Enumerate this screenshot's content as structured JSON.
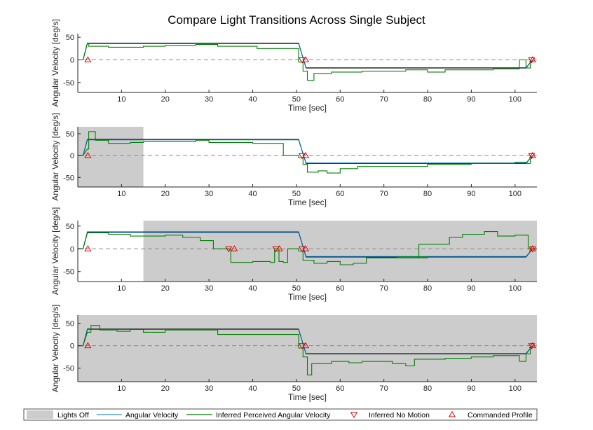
{
  "chart_data": {
    "type": "line",
    "title": "Compare Light Transitions Across Single Subject",
    "legend": {
      "placement": "bottom",
      "entries": [
        {
          "label": "Lights Off",
          "color": "#cccccc",
          "marker": "patch"
        },
        {
          "label": "Angular Velocity",
          "color": "#0072bd",
          "marker": "line"
        },
        {
          "label": "Inferred Perceived Angular Velocity",
          "color": "#008000",
          "marker": "line"
        },
        {
          "label": "Inferred No Motion",
          "color": "#e00000",
          "marker": "triangle-down"
        },
        {
          "label": "Commanded Profile",
          "color": "#e00000",
          "marker": "triangle-up"
        }
      ]
    },
    "panels": [
      {
        "xlabel": "Time [sec]",
        "ylabel": "Angular Velocity [deg/s]",
        "xlim": [
          0,
          105
        ],
        "ylim": [
          -72,
          58
        ],
        "xticks": [
          10,
          20,
          30,
          40,
          50,
          60,
          70,
          80,
          90,
          100
        ],
        "yticks": [
          -50,
          0,
          50
        ],
        "lights_off": [],
        "commanded": [
          [
            0,
            0
          ],
          [
            1.2,
            0
          ],
          [
            2.2,
            37
          ],
          [
            50.5,
            37
          ],
          [
            52.2,
            -18
          ],
          [
            102.5,
            -18
          ],
          [
            104,
            0
          ]
        ],
        "angular_velocity": [
          [
            0,
            0
          ],
          [
            1.2,
            0
          ],
          [
            2.2,
            36
          ],
          [
            50.5,
            36
          ],
          [
            52.2,
            -17
          ],
          [
            102.5,
            -17
          ],
          [
            104,
            0
          ]
        ],
        "perceived": [
          [
            0,
            0
          ],
          [
            1.2,
            0
          ],
          [
            2.2,
            37
          ],
          [
            2.5,
            37
          ],
          [
            2.5,
            30
          ],
          [
            7,
            30
          ],
          [
            7,
            28
          ],
          [
            15,
            28
          ],
          [
            15,
            30
          ],
          [
            20,
            30
          ],
          [
            20,
            32
          ],
          [
            27,
            32
          ],
          [
            27,
            34
          ],
          [
            32,
            34
          ],
          [
            32,
            30
          ],
          [
            41,
            30
          ],
          [
            41,
            25
          ],
          [
            50.5,
            25
          ],
          [
            50.5,
            -5
          ],
          [
            51.5,
            -5
          ],
          [
            51.5,
            -25
          ],
          [
            52.5,
            -25
          ],
          [
            52.5,
            -45
          ],
          [
            54,
            -45
          ],
          [
            54,
            -30
          ],
          [
            58,
            -30
          ],
          [
            58,
            -27
          ],
          [
            65,
            -27
          ],
          [
            65,
            -25
          ],
          [
            75,
            -25
          ],
          [
            75,
            -22
          ],
          [
            80,
            -22
          ],
          [
            80,
            -27
          ],
          [
            84,
            -27
          ],
          [
            84,
            -22
          ],
          [
            95,
            -22
          ],
          [
            95,
            -20
          ],
          [
            101,
            -20
          ],
          [
            101,
            0
          ],
          [
            102.5,
            0
          ],
          [
            102.5,
            -18
          ],
          [
            103.5,
            -18
          ],
          [
            103.5,
            0
          ]
        ],
        "no_motion_markers": [
          [
            51.3,
            0
          ],
          [
            103.8,
            0
          ]
        ],
        "commanded_markers": [
          [
            2.3,
            0
          ],
          [
            52.1,
            0
          ],
          [
            104,
            0
          ]
        ]
      },
      {
        "xlabel": "Time [sec]",
        "ylabel": "Angular Velocity [deg/s]",
        "xlim": [
          0,
          105
        ],
        "ylim": [
          -72,
          66
        ],
        "xticks": [
          10,
          20,
          30,
          40,
          50,
          60,
          70,
          80,
          90,
          100
        ],
        "yticks": [
          -50,
          0,
          50
        ],
        "lights_off": [
          [
            0,
            15
          ]
        ],
        "commanded": [
          [
            0,
            0
          ],
          [
            1.2,
            0
          ],
          [
            2.2,
            37
          ],
          [
            50.5,
            37
          ],
          [
            52.2,
            -18
          ],
          [
            102.5,
            -18
          ],
          [
            104,
            0
          ]
        ],
        "angular_velocity": [
          [
            0,
            0
          ],
          [
            1.2,
            0
          ],
          [
            2.2,
            36
          ],
          [
            50.5,
            36
          ],
          [
            52.2,
            -17
          ],
          [
            102.5,
            -17
          ],
          [
            104,
            0
          ]
        ],
        "perceived": [
          [
            0,
            0
          ],
          [
            1.2,
            0
          ],
          [
            2.2,
            15
          ],
          [
            2.5,
            15
          ],
          [
            2.5,
            55
          ],
          [
            4,
            55
          ],
          [
            4,
            35
          ],
          [
            7,
            35
          ],
          [
            7,
            28
          ],
          [
            12,
            28
          ],
          [
            12,
            30
          ],
          [
            15,
            30
          ],
          [
            15,
            32
          ],
          [
            27,
            32
          ],
          [
            27,
            35
          ],
          [
            30,
            35
          ],
          [
            30,
            30
          ],
          [
            40,
            30
          ],
          [
            40,
            28
          ],
          [
            47,
            28
          ],
          [
            47,
            0
          ],
          [
            50.5,
            0
          ],
          [
            50.5,
            -5
          ],
          [
            51.5,
            -5
          ],
          [
            51.5,
            -20
          ],
          [
            52.5,
            -20
          ],
          [
            52.5,
            -38
          ],
          [
            55,
            -38
          ],
          [
            55,
            -35
          ],
          [
            57,
            -35
          ],
          [
            57,
            -40
          ],
          [
            60,
            -40
          ],
          [
            60,
            -30
          ],
          [
            64,
            -30
          ],
          [
            64,
            -25
          ],
          [
            80,
            -25
          ],
          [
            80,
            -20
          ],
          [
            90,
            -20
          ],
          [
            90,
            -18
          ],
          [
            100,
            -18
          ],
          [
            100,
            -15
          ],
          [
            102.5,
            -15
          ],
          [
            102.5,
            -18
          ],
          [
            103.5,
            -18
          ],
          [
            103.5,
            0
          ]
        ],
        "no_motion_markers": [
          [
            51.3,
            0
          ],
          [
            103.8,
            0
          ]
        ],
        "commanded_markers": [
          [
            2.3,
            0
          ],
          [
            52.1,
            0
          ],
          [
            104,
            0
          ]
        ]
      },
      {
        "xlabel": "Time [sec]",
        "ylabel": "Angular Velocity [deg/s]",
        "xlim": [
          0,
          105
        ],
        "ylim": [
          -72,
          62
        ],
        "xticks": [
          10,
          20,
          30,
          40,
          50,
          60,
          70,
          80,
          90,
          100
        ],
        "yticks": [
          -50,
          0,
          50
        ],
        "lights_off": [
          [
            15,
            105
          ]
        ],
        "commanded": [
          [
            0,
            0
          ],
          [
            1.2,
            0
          ],
          [
            2.2,
            37
          ],
          [
            50.5,
            37
          ],
          [
            52.2,
            -18
          ],
          [
            102.5,
            -18
          ],
          [
            104,
            0
          ]
        ],
        "angular_velocity": [
          [
            0,
            0
          ],
          [
            1.2,
            0
          ],
          [
            2.2,
            36
          ],
          [
            50.5,
            36
          ],
          [
            52.2,
            -17
          ],
          [
            102.5,
            -17
          ],
          [
            104,
            0
          ]
        ],
        "perceived": [
          [
            0,
            0
          ],
          [
            1.2,
            0
          ],
          [
            2.2,
            35
          ],
          [
            7,
            35
          ],
          [
            7,
            32
          ],
          [
            12,
            32
          ],
          [
            12,
            28
          ],
          [
            20,
            28
          ],
          [
            20,
            30
          ],
          [
            24,
            30
          ],
          [
            24,
            25
          ],
          [
            28,
            25
          ],
          [
            28,
            18
          ],
          [
            31,
            18
          ],
          [
            31,
            0
          ],
          [
            35,
            0
          ],
          [
            35,
            -30
          ],
          [
            40,
            -30
          ],
          [
            40,
            -28
          ],
          [
            44,
            -28
          ],
          [
            44,
            -30
          ],
          [
            45,
            -30
          ],
          [
            45,
            0
          ],
          [
            46,
            0
          ],
          [
            46,
            -28
          ],
          [
            47,
            -28
          ],
          [
            47,
            -30
          ],
          [
            48,
            -30
          ],
          [
            48,
            0
          ],
          [
            50.5,
            0
          ],
          [
            50.5,
            -5
          ],
          [
            51.5,
            -5
          ],
          [
            51.5,
            -25
          ],
          [
            54,
            -25
          ],
          [
            54,
            -32
          ],
          [
            57,
            -32
          ],
          [
            57,
            -28
          ],
          [
            60,
            -28
          ],
          [
            60,
            -35
          ],
          [
            63,
            -35
          ],
          [
            63,
            -32
          ],
          [
            66,
            -32
          ],
          [
            66,
            -20
          ],
          [
            80,
            -20
          ],
          [
            80,
            -18
          ],
          [
            73,
            -18
          ],
          [
            73,
            -20
          ],
          [
            78,
            -20
          ],
          [
            78,
            10
          ],
          [
            85,
            10
          ],
          [
            85,
            25
          ],
          [
            88,
            25
          ],
          [
            88,
            32
          ],
          [
            93,
            32
          ],
          [
            93,
            38
          ],
          [
            96,
            38
          ],
          [
            96,
            28
          ],
          [
            100,
            28
          ],
          [
            100,
            30
          ],
          [
            103,
            30
          ],
          [
            103,
            0
          ],
          [
            105,
            0
          ]
        ],
        "no_motion_markers": [
          [
            34.5,
            0
          ],
          [
            45.3,
            0
          ],
          [
            51.3,
            0
          ],
          [
            104,
            0
          ]
        ],
        "commanded_markers": [
          [
            2.3,
            0
          ],
          [
            35.8,
            0
          ],
          [
            46.1,
            0
          ],
          [
            52.1,
            0
          ],
          [
            104,
            0
          ]
        ]
      },
      {
        "xlabel": "Time [sec]",
        "ylabel": "Angular Velocity [deg/s]",
        "xlim": [
          0,
          105
        ],
        "ylim": [
          -80,
          68
        ],
        "xticks": [
          10,
          20,
          30,
          40,
          50,
          60,
          70,
          80,
          90,
          100
        ],
        "yticks": [
          -50,
          0,
          50
        ],
        "lights_off": [
          [
            0,
            105
          ]
        ],
        "commanded": [
          [
            0,
            0
          ],
          [
            1.2,
            0
          ],
          [
            2.2,
            37
          ],
          [
            50.5,
            37
          ],
          [
            52.2,
            -18
          ],
          [
            102.5,
            -18
          ],
          [
            104,
            0
          ]
        ],
        "angular_velocity": [
          [
            0,
            0
          ],
          [
            1.2,
            0
          ],
          [
            2.2,
            36
          ],
          [
            50.5,
            36
          ],
          [
            52.2,
            -17
          ],
          [
            102.5,
            -17
          ],
          [
            104,
            0
          ]
        ],
        "perceived": [
          [
            0,
            0
          ],
          [
            1.2,
            0
          ],
          [
            2.2,
            30
          ],
          [
            3,
            30
          ],
          [
            3,
            45
          ],
          [
            5,
            45
          ],
          [
            5,
            35
          ],
          [
            9,
            35
          ],
          [
            9,
            32
          ],
          [
            12,
            32
          ],
          [
            12,
            36
          ],
          [
            15,
            36
          ],
          [
            15,
            30
          ],
          [
            20,
            30
          ],
          [
            20,
            35
          ],
          [
            32,
            35
          ],
          [
            32,
            25
          ],
          [
            50.5,
            25
          ],
          [
            50.5,
            -5
          ],
          [
            51.5,
            -5
          ],
          [
            51.5,
            -25
          ],
          [
            52.5,
            -25
          ],
          [
            52.5,
            -65
          ],
          [
            53.5,
            -65
          ],
          [
            53.5,
            -40
          ],
          [
            58,
            -40
          ],
          [
            58,
            -35
          ],
          [
            62,
            -35
          ],
          [
            62,
            -38
          ],
          [
            65,
            -38
          ],
          [
            65,
            -35
          ],
          [
            72,
            -35
          ],
          [
            72,
            -40
          ],
          [
            75,
            -40
          ],
          [
            75,
            -45
          ],
          [
            77,
            -45
          ],
          [
            77,
            -30
          ],
          [
            84,
            -30
          ],
          [
            84,
            -28
          ],
          [
            90,
            -28
          ],
          [
            90,
            -25
          ],
          [
            95,
            -25
          ],
          [
            95,
            -22
          ],
          [
            101,
            -22
          ],
          [
            101,
            -35
          ],
          [
            102.5,
            -35
          ],
          [
            102.5,
            -18
          ],
          [
            103.5,
            -18
          ],
          [
            103.5,
            0
          ]
        ],
        "no_motion_markers": [
          [
            51.3,
            0
          ],
          [
            103.8,
            0
          ]
        ],
        "commanded_markers": [
          [
            2.3,
            0
          ],
          [
            52.1,
            0
          ],
          [
            104,
            0
          ]
        ]
      }
    ]
  }
}
